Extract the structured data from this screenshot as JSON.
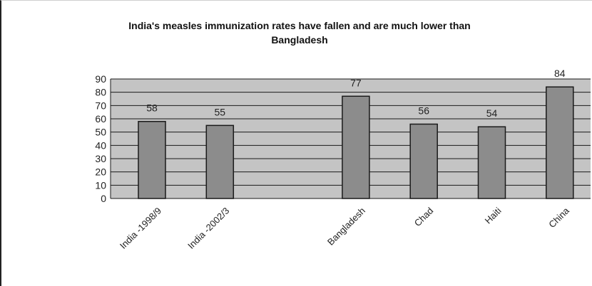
{
  "chart_data": {
    "type": "bar",
    "title_line1": "India's measles immunization rates have fallen and are much lower than",
    "title_line2": "Bangladesh",
    "categories": [
      "India -1998/9",
      "India -2002/3",
      "",
      "Bangladesh",
      "Chad",
      "Haiti",
      "China"
    ],
    "values": [
      58,
      55,
      null,
      77,
      56,
      54,
      84
    ],
    "data_labels": [
      "58",
      "55",
      "",
      "77",
      "56",
      "54",
      "84"
    ],
    "y_ticks": [
      "0",
      "10",
      "20",
      "30",
      "40",
      "50",
      "60",
      "70",
      "80",
      "90"
    ],
    "ylim": [
      0,
      90
    ],
    "grid": true,
    "legend": "none",
    "colors": {
      "plot_background": "#c4c4c4",
      "bar_fill": "#8c8c8c",
      "bar_stroke": "#1a1a1a",
      "gridline": "#1a1a1a"
    }
  }
}
